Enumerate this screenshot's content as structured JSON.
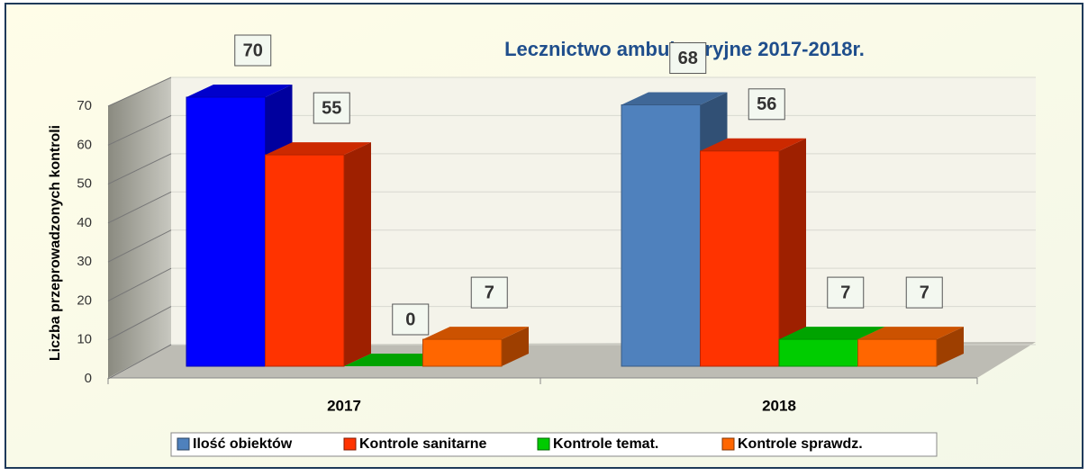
{
  "chart_data": {
    "type": "bar3d",
    "title": "Lecznictwo ambulatoryjne 2017-2018r.",
    "y_label": "Liczba przeprowadzonych kontroli",
    "categories": [
      "2017",
      "2018"
    ],
    "series": [
      {
        "name": "Ilość obiektów",
        "color": "#4f81bd",
        "point_colors": [
          "#0000ff",
          "#4f81bd"
        ],
        "values": [
          70,
          68
        ]
      },
      {
        "name": "Kontrole sanitarne",
        "color": "#ff3300",
        "values": [
          55,
          56
        ]
      },
      {
        "name": "Kontrole temat.",
        "color": "#00cc00",
        "values": [
          0,
          7
        ]
      },
      {
        "name": "Kontrole sprawdz.",
        "color": "#ff6600",
        "values": [
          7,
          7
        ]
      }
    ],
    "ylim": [
      0,
      70
    ],
    "yticks": [
      0,
      10,
      20,
      30,
      40,
      50,
      60,
      70
    ],
    "grid": true,
    "legend": "bottom"
  }
}
